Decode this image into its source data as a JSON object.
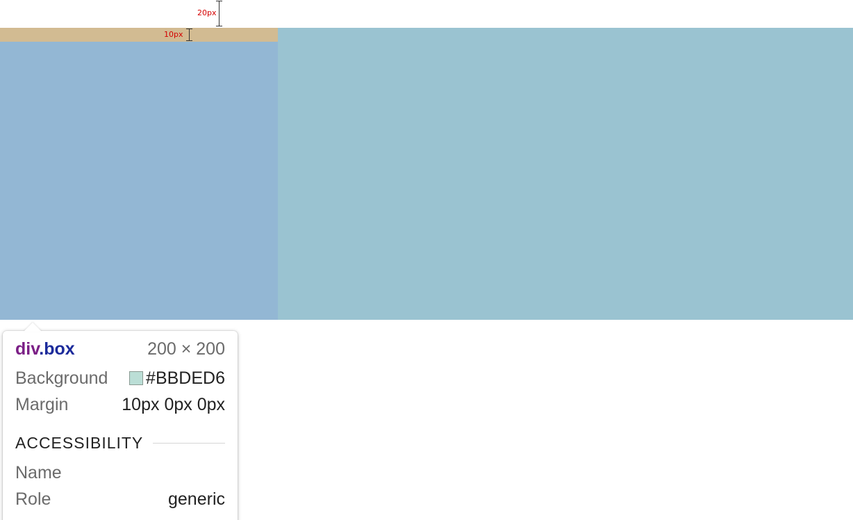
{
  "measurements": {
    "outer_margin": "20px",
    "inner_margin": "10px"
  },
  "tooltip": {
    "tag": "div",
    "class_name": ".box",
    "dimensions": "200 × 200",
    "background_label": "Background",
    "background_value": "#BBDED6",
    "background_swatch_color": "#BBDED6",
    "margin_label": "Margin",
    "margin_value": "10px 0px 0px",
    "accessibility_heading": "ACCESSIBILITY",
    "name_label": "Name",
    "name_value": "",
    "role_label": "Role",
    "role_value": "generic"
  },
  "colors": {
    "margin_highlight": "#d2bb92",
    "box_highlight": "#93b7d4",
    "container_highlight": "#9ac3d1",
    "measure_text": "#d40000"
  }
}
